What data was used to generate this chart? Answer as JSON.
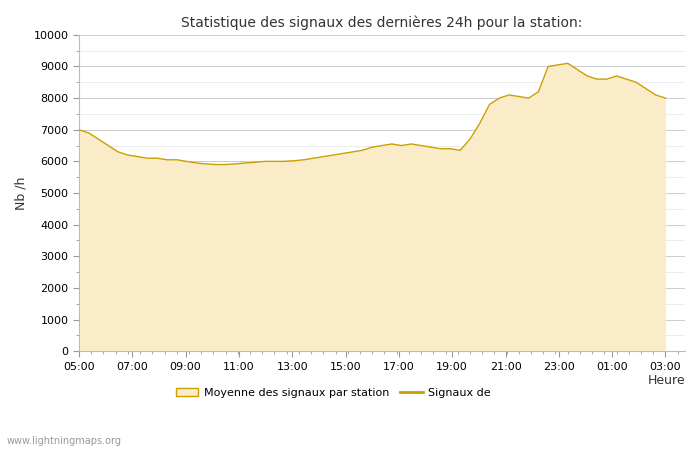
{
  "title": "Statistique des signaux des dernières 24h pour la station:",
  "xlabel": "Heure",
  "ylabel": "Nb /h",
  "ylim": [
    0,
    10000
  ],
  "yticks": [
    0,
    1000,
    2000,
    3000,
    4000,
    5000,
    6000,
    7000,
    8000,
    9000,
    10000
  ],
  "yticks_minor": [
    500,
    1500,
    2500,
    3500,
    4500,
    5500,
    6500,
    7500,
    8500,
    9500
  ],
  "xtick_labels": [
    "05:00",
    "07:00",
    "09:00",
    "11:00",
    "13:00",
    "15:00",
    "17:00",
    "19:00",
    "21:00",
    "23:00",
    "01:00",
    "03:00"
  ],
  "fill_color": "#faecc8",
  "line_color": "#c8a000",
  "background_color": "#ffffff",
  "watermark": "www.lightningmaps.org",
  "legend_fill_label": "Moyenne des signaux par station",
  "legend_line_label": "Signaux de",
  "times": [
    0,
    0.5,
    1,
    1.5,
    2,
    2.5,
    3,
    3.5,
    4,
    4.5,
    5,
    5.5,
    6,
    6.5,
    7,
    7.5,
    8,
    8.5,
    9,
    9.5,
    10,
    10.5,
    11,
    11.5,
    12,
    12.5,
    13,
    13.5,
    14,
    14.5,
    15,
    15.5,
    16,
    16.5,
    17,
    17.5,
    18,
    18.5,
    19,
    19.5,
    20,
    20.5,
    21,
    21.5,
    22,
    22.5,
    23,
    23.5,
    24,
    24.5,
    25,
    25.5,
    26,
    26.5,
    27,
    27.5,
    28,
    28.5,
    29,
    29.5,
    30
  ],
  "values": [
    7000,
    6900,
    6700,
    6500,
    6300,
    6200,
    6150,
    6100,
    6100,
    6050,
    6050,
    6000,
    5950,
    5920,
    5900,
    5900,
    5920,
    5950,
    5970,
    6000,
    6000,
    6000,
    6020,
    6050,
    6100,
    6150,
    6200,
    6250,
    6300,
    6350,
    6450,
    6500,
    6550,
    6500,
    6550,
    6500,
    6450,
    6400,
    6400,
    6350,
    6700,
    7200,
    7800,
    8000,
    8100,
    8050,
    8000,
    8200,
    9000,
    9050,
    9100,
    8900,
    8700,
    8600,
    8600,
    8700,
    8600,
    8500,
    8300,
    8100,
    8000
  ]
}
